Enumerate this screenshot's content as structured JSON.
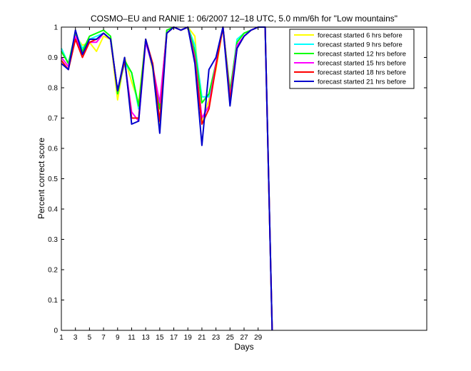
{
  "chart_data": {
    "type": "line",
    "title": "COSMO–EU and RANIE 1: 06/2007 12–18 UTC, 5.0 mm/6h for \"Low mountains\"",
    "xlabel": "Days",
    "ylabel": "Percent correct score",
    "xlim": [
      1,
      53
    ],
    "ylim": [
      0,
      1
    ],
    "xticks": [
      1,
      3,
      5,
      7,
      9,
      11,
      13,
      15,
      17,
      19,
      21,
      23,
      25,
      27,
      29
    ],
    "yticks": [
      0,
      0.1,
      0.2,
      0.3,
      0.4,
      0.5,
      0.6,
      0.7,
      0.8,
      0.9,
      1
    ],
    "ytick_labels": [
      "0",
      "0.1",
      "0.2",
      "0.3",
      "0.4",
      "0.5",
      "0.6",
      "0.7",
      "0.8",
      "0.9",
      "1"
    ],
    "legend_position": "top-right",
    "x": [
      1,
      2,
      3,
      4,
      5,
      6,
      7,
      8,
      9,
      10,
      11,
      12,
      13,
      14,
      15,
      16,
      17,
      18,
      19,
      20,
      21,
      22,
      23,
      24,
      25,
      26,
      27,
      28,
      29,
      30,
      31
    ],
    "series": [
      {
        "name": "forecast started 6 hrs before",
        "color": "#ffff00",
        "values": [
          0.93,
          0.88,
          0.97,
          0.94,
          0.95,
          0.92,
          0.97,
          0.96,
          0.76,
          0.9,
          0.82,
          0.75,
          0.96,
          0.86,
          0.67,
          0.98,
          1.0,
          0.99,
          1.0,
          0.97,
          0.69,
          0.76,
          0.86,
          1.0,
          0.78,
          0.95,
          0.98,
          0.99,
          1.0,
          1.0,
          0.0
        ]
      },
      {
        "name": "forecast started 9 hrs before",
        "color": "#00ffff",
        "values": [
          0.93,
          0.88,
          0.98,
          0.93,
          0.96,
          0.97,
          0.98,
          0.96,
          0.79,
          0.88,
          0.85,
          0.73,
          0.95,
          0.87,
          0.74,
          0.98,
          1.0,
          0.99,
          1.0,
          0.94,
          0.77,
          0.77,
          0.88,
          1.0,
          0.78,
          0.96,
          0.98,
          0.99,
          1.0,
          1.0,
          0.0
        ]
      },
      {
        "name": "forecast started 12 hrs before",
        "color": "#00ff00",
        "values": [
          0.92,
          0.88,
          0.98,
          0.92,
          0.97,
          0.98,
          0.99,
          0.97,
          0.78,
          0.89,
          0.85,
          0.74,
          0.96,
          0.87,
          0.73,
          0.99,
          1.0,
          0.99,
          1.0,
          0.92,
          0.75,
          0.78,
          0.88,
          1.0,
          0.79,
          0.95,
          0.98,
          0.99,
          1.0,
          1.0,
          0.0
        ]
      },
      {
        "name": "forecast started 15 hrs before",
        "color": "#ff00ff",
        "values": [
          0.9,
          0.87,
          0.97,
          0.91,
          0.95,
          0.95,
          0.98,
          0.96,
          0.79,
          0.89,
          0.72,
          0.69,
          0.95,
          0.87,
          0.75,
          0.98,
          1.0,
          0.99,
          1.0,
          0.9,
          0.7,
          0.74,
          0.88,
          1.0,
          0.77,
          0.94,
          0.97,
          0.99,
          1.0,
          1.0,
          0.0
        ]
      },
      {
        "name": "forecast started 18 hrs before",
        "color": "#ff0000",
        "values": [
          0.89,
          0.86,
          0.96,
          0.9,
          0.95,
          0.96,
          0.98,
          0.96,
          0.79,
          0.89,
          0.7,
          0.7,
          0.96,
          0.88,
          0.69,
          0.98,
          1.0,
          0.99,
          1.0,
          0.89,
          0.68,
          0.73,
          0.87,
          1.0,
          0.76,
          0.93,
          0.97,
          0.99,
          1.0,
          1.0,
          0.0
        ]
      },
      {
        "name": "forecast started 21 hrs before",
        "color": "#0000cc",
        "values": [
          0.88,
          0.86,
          0.99,
          0.91,
          0.96,
          0.96,
          0.98,
          0.96,
          0.79,
          0.9,
          0.68,
          0.69,
          0.96,
          0.87,
          0.65,
          0.98,
          1.0,
          0.99,
          1.0,
          0.88,
          0.61,
          0.86,
          0.9,
          1.0,
          0.74,
          0.93,
          0.97,
          0.99,
          1.0,
          1.0,
          0.0
        ]
      }
    ]
  }
}
